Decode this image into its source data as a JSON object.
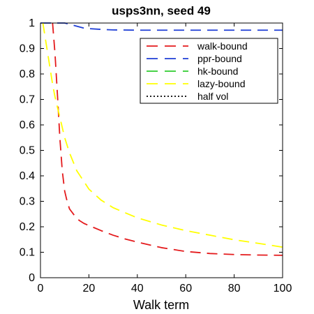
{
  "chart_data": {
    "type": "line",
    "title": "usps3nn, seed 49",
    "xlabel": "Walk term",
    "ylabel": "",
    "xlim": [
      0,
      100
    ],
    "ylim": [
      0,
      1
    ],
    "xticks": [
      0,
      20,
      40,
      60,
      80,
      100
    ],
    "yticks": [
      0,
      0.1,
      0.2,
      0.3,
      0.4,
      0.5,
      0.6,
      0.7,
      0.8,
      0.9,
      1
    ],
    "grid": false,
    "legend_position": "top-right",
    "series": [
      {
        "name": "walk-bound",
        "color": "#e41a1c",
        "dash": "dashed",
        "x": [
          5,
          6,
          7,
          8,
          9,
          10,
          11,
          12,
          14,
          16,
          18,
          20,
          25,
          30,
          35,
          40,
          50,
          60,
          70,
          80,
          90,
          100
        ],
        "y": [
          1.0,
          0.88,
          0.72,
          0.55,
          0.42,
          0.34,
          0.3,
          0.27,
          0.245,
          0.225,
          0.213,
          0.205,
          0.185,
          0.167,
          0.152,
          0.14,
          0.118,
          0.103,
          0.095,
          0.091,
          0.089,
          0.088
        ]
      },
      {
        "name": "ppr-bound",
        "color": "#1f3fd6",
        "dash": "dashed",
        "x": [
          0,
          10,
          12,
          14,
          16,
          18,
          20,
          25,
          30,
          40,
          60,
          80,
          100
        ],
        "y": [
          1.0,
          1.0,
          0.995,
          0.99,
          0.985,
          0.98,
          0.978,
          0.975,
          0.973,
          0.972,
          0.972,
          0.972,
          0.972
        ]
      },
      {
        "name": "hk-bound",
        "color": "#2ecc2e",
        "dash": "dashed",
        "x": [],
        "y": []
      },
      {
        "name": "lazy-bound",
        "color": "#ffff00",
        "dash": "dashed",
        "x": [
          1,
          2,
          3,
          4,
          5,
          6,
          8,
          10,
          12,
          15,
          20,
          25,
          30,
          40,
          50,
          60,
          70,
          80,
          90,
          100
        ],
        "y": [
          1.0,
          0.94,
          0.88,
          0.82,
          0.76,
          0.71,
          0.63,
          0.55,
          0.49,
          0.42,
          0.348,
          0.305,
          0.275,
          0.235,
          0.207,
          0.185,
          0.167,
          0.149,
          0.135,
          0.12
        ]
      },
      {
        "name": "half vol",
        "color": "#000000",
        "dash": "dotted",
        "x": [],
        "y": []
      }
    ]
  }
}
